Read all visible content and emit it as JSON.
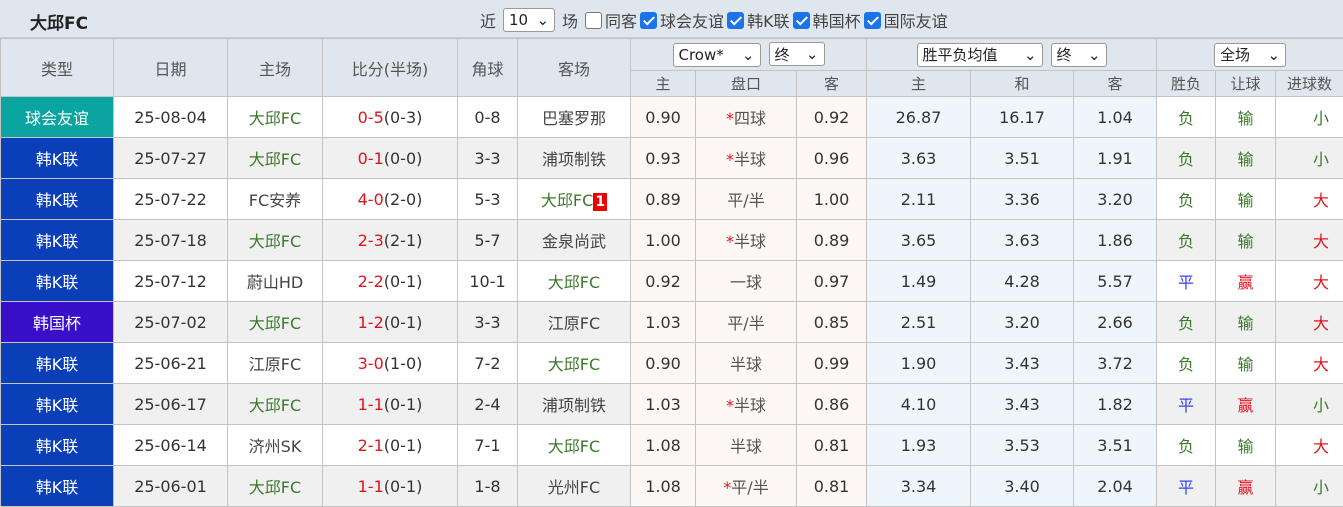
{
  "title": "大邱FC",
  "filters": {
    "recent_label": "近",
    "count": "10",
    "matches_label": "场",
    "same_home_away": {
      "label": "同客",
      "checked": false
    },
    "types": [
      {
        "label": "球会友谊",
        "checked": true
      },
      {
        "label": "韩K联",
        "checked": true
      },
      {
        "label": "韩国杯",
        "checked": true
      },
      {
        "label": "国际友谊",
        "checked": true
      }
    ]
  },
  "headers": {
    "type": "类型",
    "date": "日期",
    "home": "主场",
    "score": "比分(半场)",
    "corner": "角球",
    "away": "客场",
    "company": "Crow*",
    "odds_stage": "终",
    "avg_select": "胜平负均值",
    "avg_stage": "终",
    "scope": "全场",
    "sub": [
      "主",
      "盘口",
      "客",
      "主",
      "和",
      "客",
      "胜负",
      "让球",
      "进球数"
    ]
  },
  "colors": {
    "friendly": "#0aa5a0",
    "kleague": "#0a3fb8",
    "cup": "#3a0fc8",
    "win": "#e0141e",
    "lose": "#3a7a2a",
    "draw": "#3344ee"
  },
  "rows": [
    {
      "type": "球会友谊",
      "kind": "friendly",
      "date": "25-08-04",
      "home": "大邱FC",
      "home_is_team": true,
      "score": "0-5",
      "half": "(0-3)",
      "corner": "0-8",
      "away": "巴塞罗那",
      "away_is_team": false,
      "o_home": "0.90",
      "hcap": "四球",
      "hstar": true,
      "o_away": "0.92",
      "a_home": "26.87",
      "a_draw": "16.17",
      "a_away": "1.04",
      "res": "负",
      "ah": "输",
      "ou": "小"
    },
    {
      "type": "韩K联",
      "kind": "kleague",
      "date": "25-07-27",
      "home": "大邱FC",
      "home_is_team": true,
      "score": "0-1",
      "half": "(0-0)",
      "corner": "3-3",
      "away": "浦项制铁",
      "away_is_team": false,
      "o_home": "0.93",
      "hcap": "半球",
      "hstar": true,
      "o_away": "0.96",
      "a_home": "3.63",
      "a_draw": "3.51",
      "a_away": "1.91",
      "res": "负",
      "ah": "输",
      "ou": "小"
    },
    {
      "type": "韩K联",
      "kind": "kleague",
      "date": "25-07-22",
      "home": "FC安养",
      "home_is_team": false,
      "score": "4-0",
      "half": "(2-0)",
      "corner": "5-3",
      "away": "大邱FC",
      "away_is_team": true,
      "red_card": "1",
      "o_home": "0.89",
      "hcap": "平/半",
      "hstar": false,
      "o_away": "1.00",
      "a_home": "2.11",
      "a_draw": "3.36",
      "a_away": "3.20",
      "res": "负",
      "ah": "输",
      "ou": "大"
    },
    {
      "type": "韩K联",
      "kind": "kleague",
      "date": "25-07-18",
      "home": "大邱FC",
      "home_is_team": true,
      "score": "2-3",
      "half": "(2-1)",
      "corner": "5-7",
      "away": "金泉尚武",
      "away_is_team": false,
      "o_home": "1.00",
      "hcap": "半球",
      "hstar": true,
      "o_away": "0.89",
      "a_home": "3.65",
      "a_draw": "3.63",
      "a_away": "1.86",
      "res": "负",
      "ah": "输",
      "ou": "大"
    },
    {
      "type": "韩K联",
      "kind": "kleague",
      "date": "25-07-12",
      "home": "蔚山HD",
      "home_is_team": false,
      "score": "2-2",
      "half": "(0-1)",
      "corner": "10-1",
      "away": "大邱FC",
      "away_is_team": true,
      "o_home": "0.92",
      "hcap": "一球",
      "hstar": false,
      "o_away": "0.97",
      "a_home": "1.49",
      "a_draw": "4.28",
      "a_away": "5.57",
      "res": "平",
      "ah": "赢",
      "ou": "大"
    },
    {
      "type": "韩国杯",
      "kind": "cup",
      "date": "25-07-02",
      "home": "大邱FC",
      "home_is_team": true,
      "score": "1-2",
      "half": "(0-1)",
      "corner": "3-3",
      "away": "江原FC",
      "away_is_team": false,
      "o_home": "1.03",
      "hcap": "平/半",
      "hstar": false,
      "o_away": "0.85",
      "a_home": "2.51",
      "a_draw": "3.20",
      "a_away": "2.66",
      "res": "负",
      "ah": "输",
      "ou": "大"
    },
    {
      "type": "韩K联",
      "kind": "kleague",
      "date": "25-06-21",
      "home": "江原FC",
      "home_is_team": false,
      "score": "3-0",
      "half": "(1-0)",
      "corner": "7-2",
      "away": "大邱FC",
      "away_is_team": true,
      "o_home": "0.90",
      "hcap": "半球",
      "hstar": false,
      "o_away": "0.99",
      "a_home": "1.90",
      "a_draw": "3.43",
      "a_away": "3.72",
      "res": "负",
      "ah": "输",
      "ou": "大"
    },
    {
      "type": "韩K联",
      "kind": "kleague",
      "date": "25-06-17",
      "home": "大邱FC",
      "home_is_team": true,
      "score": "1-1",
      "half": "(0-1)",
      "corner": "2-4",
      "away": "浦项制铁",
      "away_is_team": false,
      "o_home": "1.03",
      "hcap": "半球",
      "hstar": true,
      "o_away": "0.86",
      "a_home": "4.10",
      "a_draw": "3.43",
      "a_away": "1.82",
      "res": "平",
      "ah": "赢",
      "ou": "小"
    },
    {
      "type": "韩K联",
      "kind": "kleague",
      "date": "25-06-14",
      "home": "济州SK",
      "home_is_team": false,
      "score": "2-1",
      "half": "(0-1)",
      "corner": "7-1",
      "away": "大邱FC",
      "away_is_team": true,
      "o_home": "1.08",
      "hcap": "半球",
      "hstar": false,
      "o_away": "0.81",
      "a_home": "1.93",
      "a_draw": "3.53",
      "a_away": "3.51",
      "res": "负",
      "ah": "输",
      "ou": "大"
    },
    {
      "type": "韩K联",
      "kind": "kleague",
      "date": "25-06-01",
      "home": "大邱FC",
      "home_is_team": true,
      "score": "1-1",
      "half": "(0-1)",
      "corner": "1-8",
      "away": "光州FC",
      "away_is_team": false,
      "o_home": "1.08",
      "hcap": "平/半",
      "hstar": true,
      "o_away": "0.81",
      "a_home": "3.34",
      "a_draw": "3.40",
      "a_away": "2.04",
      "res": "平",
      "ah": "赢",
      "ou": "小"
    }
  ]
}
